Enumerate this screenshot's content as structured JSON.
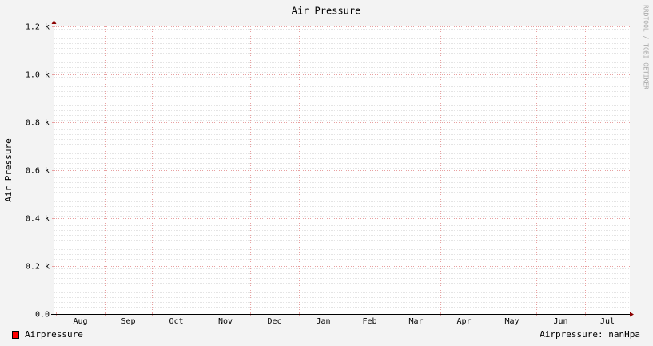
{
  "chart_data": {
    "type": "line",
    "title": "Air Pressure",
    "y_label": "Air Pressure",
    "watermark": "RRDTOOL / TOBI OETIKER",
    "categories": [
      "Aug",
      "Sep",
      "Oct",
      "Nov",
      "Dec",
      "Jan",
      "Feb",
      "Mar",
      "Apr",
      "May",
      "Jun",
      "Jul"
    ],
    "series": [
      {
        "name": "Airpressure",
        "color": "#ff0000",
        "values": [
          null,
          null,
          null,
          null,
          null,
          null,
          null,
          null,
          null,
          null,
          null,
          null
        ]
      }
    ],
    "legend_note": "Airpressure: nanHpa",
    "ylim": [
      0,
      1200
    ],
    "yticks": [
      {
        "value": 0,
        "label": "0.0"
      },
      {
        "value": 200,
        "label": "0.2 k"
      },
      {
        "value": 400,
        "label": "0.4 k"
      },
      {
        "value": 600,
        "label": "0.6 k"
      },
      {
        "value": 800,
        "label": "0.8 k"
      },
      {
        "value": 1000,
        "label": "1.0 k"
      },
      {
        "value": 1200,
        "label": "1.2 k"
      }
    ],
    "grid": true
  }
}
